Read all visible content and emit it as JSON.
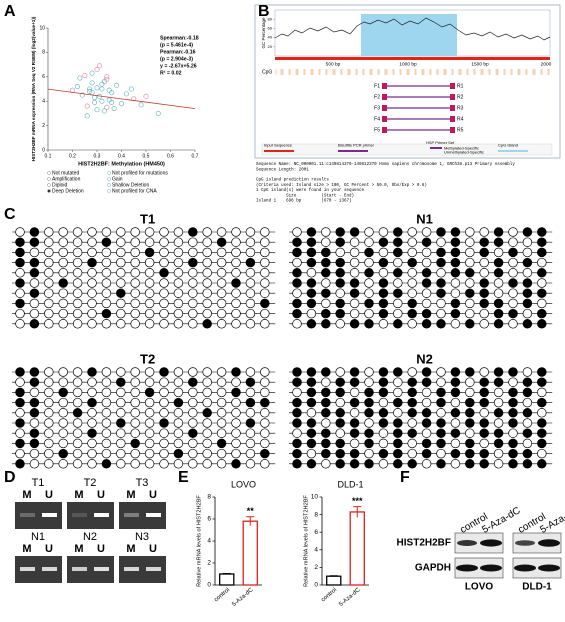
{
  "panel_labels": [
    "A",
    "B",
    "C",
    "D",
    "E",
    "F"
  ],
  "chart_data": [
    {
      "type": "scatter",
      "x_label": "HIST2H2BF: Methylation (HM450)",
      "y_label": "HIST2H2BF mRNA expression (RNA Seq V2 RSEM) (log2(value+1))",
      "x": [
        0.22,
        0.25,
        0.27,
        0.28,
        0.29,
        0.3,
        0.31,
        0.32,
        0.33,
        0.34,
        0.35,
        0.36,
        0.24,
        0.26,
        0.28,
        0.3,
        0.32,
        0.34,
        0.38,
        0.4,
        0.42,
        0.45,
        0.23,
        0.27,
        0.29,
        0.31,
        0.33,
        0.35,
        0.37,
        0.5,
        0.55,
        0.26,
        0.3,
        0.34,
        0.28,
        0.32,
        0.36,
        0.2,
        0.44,
        0.48
      ],
      "values": [
        5.2,
        6.1,
        4.8,
        5.5,
        3.9,
        6.6,
        4.4,
        5.0,
        3.2,
        5.8,
        4.1,
        4.7,
        4.5,
        3.6,
        6.3,
        5.1,
        4.0,
        3.5,
        5.3,
        3.8,
        4.6,
        4.2,
        5.9,
        5.0,
        4.3,
        6.9,
        5.6,
        4.9,
        3.4,
        4.4,
        3.0,
        2.8,
        3.3,
        6.0,
        4.7,
        5.4,
        3.9,
        4.9,
        5.0,
        3.7
      ],
      "color": "#6fb8c8",
      "xlim": [
        0.1,
        0.7
      ],
      "xticks": [
        0.1,
        0.2,
        0.3,
        0.4,
        0.5,
        0.6,
        0.7
      ],
      "ylim": [
        0,
        10
      ],
      "yticks": [
        0,
        2,
        4,
        6,
        8,
        10
      ],
      "fit": {
        "slope": -2.67,
        "intercept": 5.26,
        "color": "#c0392b"
      },
      "stats": [
        "Spearman:-0.18",
        "(p = 5.461e-4)",
        "Pearman:-0.16",
        "(p = 2.904e-3)",
        "y = -2.67x+5.26",
        "R² = 0.02"
      ],
      "legend": [
        "Not mutated",
        "Not profiled for mutations",
        "Amplification",
        "Gain",
        "Diploid",
        "Shallow Deletion",
        "Deep Deletion",
        "Not profiled for CNA"
      ]
    },
    {
      "type": "bar",
      "title": "LOVO",
      "y_label": "Relative mRNA levels of HIST2H2BF",
      "categories": [
        "control",
        "5-Aza-dC"
      ],
      "values": [
        1,
        5.8
      ],
      "errors": [
        0.05,
        0.4
      ],
      "colors": [
        "#000000",
        "#e0201b"
      ],
      "annotations": [
        null,
        "**"
      ],
      "ylim": [
        0,
        8
      ],
      "yticks": [
        0,
        2,
        4,
        6,
        8
      ]
    },
    {
      "type": "bar",
      "title": "DLD-1",
      "y_label": "Relative mRNA levels of HIST2H2BF",
      "categories": [
        "control",
        "5-Aza-dC"
      ],
      "values": [
        1,
        8.3
      ],
      "errors": [
        0.05,
        0.6
      ],
      "colors": [
        "#000000",
        "#e0201b"
      ],
      "annotations": [
        null,
        "***"
      ],
      "ylim": [
        0,
        10
      ],
      "yticks": [
        0,
        2,
        4,
        6,
        8,
        10
      ]
    }
  ],
  "panel_b": {
    "gc_label": "GC Percentage",
    "gc_yticks": [
      20,
      40,
      60,
      80
    ],
    "cpg_label": "CpG",
    "x_labels": [
      "500 bp",
      "1000 bp",
      "1500 bp",
      "2000"
    ],
    "forward_primers": [
      "F1",
      "F2",
      "F3",
      "F4",
      "F5"
    ],
    "reverse_primers": [
      "R1",
      "R2",
      "R3",
      "R4",
      "R5"
    ],
    "legend": [
      "Input Sequence",
      "Bisulfite PCR primer",
      "HSP Primer Set",
      "CpG Island",
      "Methylated-Specific",
      "Unmethylated-Specific"
    ],
    "text_lines": [
      "Sequence Name: NC_000001.11:c149814370-149812370 Homo sapiens chromosome 1, GRCh38.p13 Primary Assembly",
      "Sequence Length: 2001",
      "",
      "CpG island prediction results",
      "(Criteria used: Island size > 100, GC Percent > 50.0, Obs/Exp > 0.6)",
      "1 CpG island(s) were found in your sequence",
      "            Size          (Start - End)",
      "Island 1    698 bp        (670 - 1367)"
    ]
  },
  "panel_c": {
    "grids": [
      {
        "title": "T1",
        "rows": [
          [
            0,
            1,
            0,
            0,
            0,
            0,
            0,
            0,
            0,
            0,
            0,
            0,
            1,
            0,
            0,
            0,
            0,
            0
          ],
          [
            1,
            1,
            0,
            0,
            0,
            0,
            1,
            0,
            0,
            0,
            0,
            0,
            0,
            0,
            1,
            0,
            0,
            0
          ],
          [
            1,
            0,
            0,
            0,
            0,
            0,
            0,
            0,
            0,
            1,
            0,
            0,
            0,
            0,
            0,
            0,
            0,
            0
          ],
          [
            1,
            1,
            0,
            0,
            0,
            1,
            0,
            0,
            0,
            0,
            0,
            0,
            1,
            0,
            0,
            0,
            1,
            0
          ],
          [
            0,
            1,
            0,
            0,
            0,
            0,
            0,
            0,
            0,
            0,
            1,
            0,
            0,
            0,
            0,
            0,
            0,
            0
          ],
          [
            1,
            0,
            0,
            1,
            0,
            0,
            0,
            0,
            0,
            0,
            0,
            0,
            0,
            0,
            0,
            1,
            0,
            0
          ],
          [
            0,
            1,
            0,
            0,
            0,
            0,
            0,
            1,
            0,
            0,
            0,
            0,
            0,
            0,
            0,
            0,
            0,
            0
          ],
          [
            1,
            0,
            0,
            0,
            0,
            0,
            0,
            0,
            0,
            0,
            0,
            0,
            0,
            0,
            0,
            0,
            0,
            1
          ],
          [
            0,
            0,
            0,
            0,
            0,
            0,
            1,
            0,
            0,
            0,
            0,
            0,
            0,
            0,
            0,
            0,
            0,
            0
          ],
          [
            0,
            1,
            0,
            0,
            0,
            0,
            0,
            0,
            0,
            0,
            0,
            0,
            0,
            1,
            0,
            0,
            0,
            0
          ]
        ]
      },
      {
        "title": "N1",
        "rows": [
          [
            0,
            1,
            0,
            1,
            1,
            0,
            0,
            1,
            0,
            0,
            1,
            1,
            0,
            0,
            1,
            0,
            1,
            1
          ],
          [
            1,
            1,
            0,
            1,
            0,
            0,
            1,
            1,
            0,
            1,
            0,
            1,
            0,
            1,
            1,
            0,
            0,
            1
          ],
          [
            1,
            1,
            1,
            0,
            0,
            1,
            0,
            1,
            0,
            0,
            1,
            1,
            0,
            1,
            0,
            1,
            0,
            1
          ],
          [
            0,
            1,
            1,
            1,
            0,
            0,
            1,
            0,
            1,
            0,
            1,
            1,
            0,
            0,
            1,
            0,
            1,
            0
          ],
          [
            1,
            0,
            1,
            1,
            0,
            1,
            0,
            1,
            0,
            1,
            0,
            1,
            1,
            0,
            1,
            0,
            0,
            1
          ],
          [
            1,
            1,
            0,
            1,
            1,
            0,
            1,
            0,
            0,
            1,
            1,
            0,
            0,
            1,
            0,
            1,
            1,
            0
          ],
          [
            0,
            1,
            1,
            0,
            1,
            0,
            1,
            1,
            0,
            0,
            1,
            0,
            1,
            1,
            0,
            0,
            1,
            1
          ],
          [
            1,
            1,
            0,
            1,
            0,
            1,
            1,
            0,
            1,
            0,
            0,
            1,
            0,
            1,
            1,
            0,
            1,
            0
          ],
          [
            1,
            0,
            1,
            1,
            0,
            0,
            1,
            0,
            1,
            1,
            0,
            1,
            0,
            0,
            1,
            1,
            0,
            1
          ],
          [
            0,
            1,
            1,
            0,
            1,
            1,
            0,
            1,
            0,
            1,
            1,
            0,
            1,
            0,
            1,
            0,
            1,
            1
          ]
        ]
      },
      {
        "title": "T2",
        "rows": [
          [
            1,
            1,
            0,
            0,
            0,
            1,
            0,
            0,
            0,
            0,
            1,
            0,
            0,
            0,
            0,
            1,
            0,
            0
          ],
          [
            0,
            1,
            0,
            0,
            0,
            0,
            0,
            1,
            0,
            0,
            0,
            0,
            1,
            0,
            0,
            0,
            1,
            0
          ],
          [
            1,
            0,
            0,
            1,
            0,
            0,
            0,
            0,
            0,
            1,
            0,
            0,
            0,
            0,
            0,
            1,
            0,
            0
          ],
          [
            1,
            1,
            0,
            0,
            0,
            1,
            0,
            0,
            0,
            0,
            0,
            1,
            0,
            0,
            0,
            0,
            1,
            1
          ],
          [
            0,
            1,
            0,
            0,
            1,
            0,
            0,
            0,
            0,
            0,
            0,
            0,
            0,
            1,
            0,
            0,
            0,
            0
          ],
          [
            1,
            0,
            0,
            0,
            0,
            0,
            0,
            1,
            0,
            0,
            1,
            0,
            0,
            0,
            0,
            0,
            1,
            0
          ],
          [
            0,
            1,
            0,
            0,
            0,
            1,
            0,
            0,
            0,
            0,
            0,
            0,
            1,
            0,
            0,
            0,
            0,
            0
          ],
          [
            1,
            1,
            0,
            0,
            0,
            0,
            0,
            0,
            1,
            0,
            0,
            0,
            0,
            0,
            1,
            0,
            0,
            0
          ],
          [
            0,
            0,
            0,
            1,
            0,
            0,
            0,
            0,
            0,
            0,
            0,
            1,
            0,
            0,
            0,
            0,
            0,
            1
          ],
          [
            1,
            0,
            0,
            0,
            0,
            0,
            1,
            0,
            0,
            0,
            0,
            0,
            0,
            0,
            0,
            1,
            0,
            0
          ]
        ]
      },
      {
        "title": "N2",
        "rows": [
          [
            1,
            1,
            1,
            0,
            1,
            0,
            1,
            1,
            0,
            1,
            0,
            1,
            1,
            0,
            1,
            1,
            0,
            1
          ],
          [
            1,
            1,
            0,
            1,
            1,
            0,
            1,
            0,
            1,
            1,
            0,
            1,
            0,
            1,
            1,
            0,
            1,
            1
          ],
          [
            0,
            1,
            1,
            1,
            0,
            1,
            1,
            0,
            1,
            0,
            1,
            1,
            0,
            1,
            0,
            1,
            1,
            0
          ],
          [
            1,
            1,
            1,
            0,
            1,
            1,
            0,
            1,
            1,
            0,
            1,
            0,
            1,
            1,
            0,
            1,
            0,
            1
          ],
          [
            1,
            0,
            1,
            1,
            0,
            1,
            1,
            0,
            1,
            1,
            0,
            1,
            1,
            0,
            1,
            1,
            1,
            0
          ],
          [
            1,
            1,
            0,
            1,
            1,
            0,
            1,
            1,
            0,
            1,
            1,
            0,
            1,
            1,
            0,
            1,
            0,
            1
          ],
          [
            0,
            1,
            1,
            0,
            1,
            1,
            0,
            1,
            1,
            0,
            1,
            1,
            0,
            1,
            1,
            0,
            1,
            1
          ],
          [
            1,
            1,
            1,
            1,
            0,
            1,
            0,
            1,
            0,
            1,
            1,
            0,
            1,
            0,
            1,
            1,
            0,
            1
          ],
          [
            1,
            0,
            1,
            1,
            1,
            0,
            1,
            1,
            0,
            1,
            0,
            1,
            1,
            1,
            0,
            1,
            1,
            0
          ],
          [
            1,
            1,
            0,
            1,
            1,
            1,
            0,
            1,
            1,
            0,
            1,
            0,
            1,
            1,
            0,
            1,
            1,
            1
          ]
        ]
      }
    ]
  },
  "panel_d": {
    "groups": [
      "T1",
      "T2",
      "T3",
      "N1",
      "N2",
      "N3"
    ],
    "lane_labels": [
      "M",
      "U"
    ]
  },
  "panel_f": {
    "conditions": [
      "control",
      "5-Aza-dC"
    ],
    "proteins": [
      "HIST2H2BF",
      "GAPDH"
    ],
    "cell_lines": [
      "LOVO",
      "DLD-1"
    ]
  }
}
